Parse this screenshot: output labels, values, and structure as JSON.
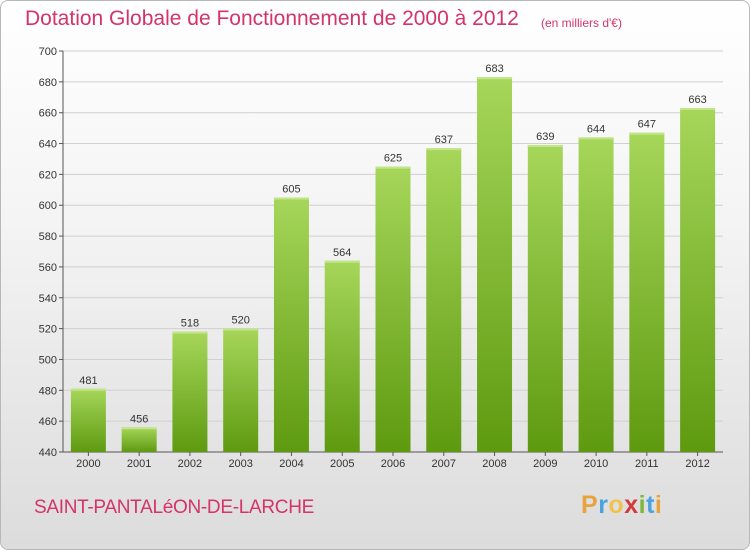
{
  "header": {
    "title": "Dotation Globale de Fonctionnement de 2000 à 2012",
    "subtitle": "(en milliers d'€)"
  },
  "footer": {
    "commune": "SAINT-PANTALéON-DE-LARCHE",
    "logo_letters": [
      "P",
      "r",
      "o",
      "x",
      "i",
      "t",
      "i"
    ],
    "logo_colors": [
      "#e8a33c",
      "#4aa3df",
      "#f2c14e",
      "#d43a3a",
      "#7ab83b",
      "#4aa3df",
      "#e8a33c"
    ]
  },
  "colors": {
    "title": "#d4336b",
    "bar_light": "#a6d65a",
    "bar_dark": "#5e9a10",
    "grid": "#d0d0d0"
  },
  "chart_data": {
    "type": "bar",
    "title": "Dotation Globale de Fonctionnement de 2000 à 2012",
    "subtitle": "(en milliers d'€)",
    "xlabel": "",
    "ylabel": "",
    "categories": [
      "2000",
      "2001",
      "2002",
      "2003",
      "2004",
      "2005",
      "2006",
      "2007",
      "2008",
      "2009",
      "2010",
      "2011",
      "2012"
    ],
    "values": [
      481,
      456,
      518,
      520,
      605,
      564,
      625,
      637,
      683,
      639,
      644,
      647,
      663
    ],
    "ylim": [
      440,
      700
    ],
    "yticks": [
      440,
      460,
      480,
      500,
      520,
      540,
      560,
      580,
      600,
      620,
      640,
      660,
      680,
      700
    ],
    "grid": true,
    "data_labels": true
  }
}
